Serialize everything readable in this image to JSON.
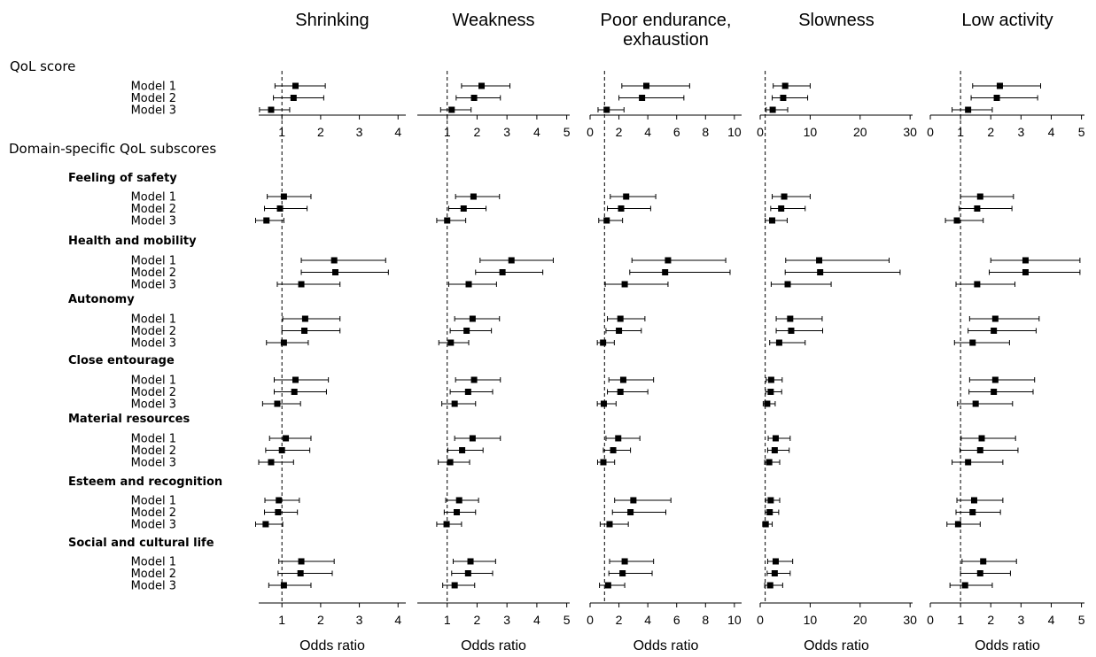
{
  "chart_data": {
    "type": "forest",
    "xlabel": "Odds ratio",
    "reference_line": 1,
    "sections": [
      {
        "label": "QoL score",
        "rows": [
          {
            "label": "",
            "models": [
              "Model 1",
              "Model 2",
              "Model 3"
            ]
          }
        ]
      },
      {
        "label": "Domain-specific QoL subscores",
        "rows": [
          {
            "label": "Feeling of safety",
            "models": [
              "Model 1",
              "Model 2",
              "Model 3"
            ]
          },
          {
            "label": "Health and mobility",
            "models": [
              "Model 1",
              "Model 2",
              "Model 3"
            ]
          },
          {
            "label": "Autonomy",
            "models": [
              "Model 1",
              "Model 2",
              "Model 3"
            ]
          },
          {
            "label": "Close entourage",
            "models": [
              "Model 1",
              "Model 2",
              "Model 3"
            ]
          },
          {
            "label": "Material resources",
            "models": [
              "Model 1",
              "Model 2",
              "Model 3"
            ]
          },
          {
            "label": "Esteem and recognition",
            "models": [
              "Model 1",
              "Model 2",
              "Model 3"
            ]
          },
          {
            "label": "Social and cultural life",
            "models": [
              "Model 1",
              "Model 2",
              "Model 3"
            ]
          }
        ]
      }
    ],
    "panels": [
      {
        "title": [
          "Shrinking"
        ],
        "xlim": [
          0.4,
          4.2
        ],
        "ticks": [
          "1",
          "2",
          "3",
          "4"
        ],
        "tick_values": [
          1,
          2,
          3,
          4
        ],
        "estimates": [
          [
            [
              1.35,
              0.82,
              2.12
            ],
            [
              1.3,
              0.78,
              2.08
            ],
            [
              0.72,
              0.42,
              1.2
            ]
          ],
          [
            [
              1.05,
              0.62,
              1.75
            ],
            [
              0.95,
              0.55,
              1.65
            ],
            [
              0.6,
              0.32,
              1.05
            ]
          ],
          [
            [
              2.35,
              1.5,
              3.68
            ],
            [
              2.38,
              1.5,
              3.75
            ],
            [
              1.5,
              0.88,
              2.5
            ]
          ],
          [
            [
              1.6,
              1.02,
              2.5
            ],
            [
              1.58,
              1.0,
              2.5
            ],
            [
              1.05,
              0.6,
              1.68
            ]
          ],
          [
            [
              1.35,
              0.8,
              2.2
            ],
            [
              1.32,
              0.8,
              2.15
            ],
            [
              0.88,
              0.5,
              1.48
            ]
          ],
          [
            [
              1.1,
              0.68,
              1.75
            ],
            [
              1.0,
              0.58,
              1.72
            ],
            [
              0.72,
              0.4,
              1.3
            ]
          ],
          [
            [
              0.92,
              0.56,
              1.45
            ],
            [
              0.9,
              0.55,
              1.4
            ],
            [
              0.58,
              0.32,
              1.02
            ]
          ],
          [
            [
              1.5,
              0.92,
              2.35
            ],
            [
              1.48,
              0.9,
              2.3
            ],
            [
              1.05,
              0.66,
              1.75
            ]
          ]
        ]
      },
      {
        "title": [
          "Weakness"
        ],
        "xlim": [
          0.0,
          5.1
        ],
        "ticks": [
          "1",
          "2",
          "3",
          "4",
          "5"
        ],
        "tick_values": [
          1,
          2,
          3,
          4,
          5
        ],
        "estimates": [
          [
            [
              2.15,
              1.48,
              3.1
            ],
            [
              1.9,
              1.3,
              2.78
            ],
            [
              1.15,
              0.78,
              1.8
            ]
          ],
          [
            [
              1.88,
              1.28,
              2.75
            ],
            [
              1.55,
              1.05,
              2.3
            ],
            [
              1.0,
              0.65,
              1.62
            ]
          ],
          [
            [
              3.15,
              2.1,
              4.55
            ],
            [
              2.85,
              1.95,
              4.2
            ],
            [
              1.72,
              1.05,
              2.65
            ]
          ],
          [
            [
              1.85,
              1.25,
              2.75
            ],
            [
              1.65,
              1.1,
              2.48
            ],
            [
              1.12,
              0.72,
              1.72
            ]
          ],
          [
            [
              1.9,
              1.28,
              2.78
            ],
            [
              1.7,
              1.1,
              2.52
            ],
            [
              1.25,
              0.82,
              1.95
            ]
          ],
          [
            [
              1.85,
              1.25,
              2.78
            ],
            [
              1.5,
              1.02,
              2.2
            ],
            [
              1.1,
              0.7,
              1.75
            ]
          ],
          [
            [
              1.4,
              0.95,
              2.05
            ],
            [
              1.32,
              0.9,
              1.95
            ],
            [
              0.98,
              0.65,
              1.48
            ]
          ],
          [
            [
              1.78,
              1.2,
              2.62
            ],
            [
              1.7,
              1.15,
              2.52
            ],
            [
              1.25,
              0.85,
              1.92
            ]
          ]
        ]
      },
      {
        "title": [
          "Poor endurance,",
          "exhaustion"
        ],
        "xlim": [
          0.0,
          10.5
        ],
        "ticks": [
          "0",
          "2",
          "4",
          "6",
          "8",
          "10"
        ],
        "tick_values": [
          0,
          2,
          4,
          6,
          8,
          10
        ],
        "estimates": [
          [
            [
              3.9,
              2.2,
              6.9
            ],
            [
              3.6,
              2.0,
              6.5
            ],
            [
              1.15,
              0.55,
              2.35
            ]
          ],
          [
            [
              2.5,
              1.4,
              4.55
            ],
            [
              2.15,
              1.2,
              4.2
            ],
            [
              1.15,
              0.6,
              2.25
            ]
          ],
          [
            [
              5.4,
              2.9,
              9.4
            ],
            [
              5.2,
              2.75,
              9.7
            ],
            [
              2.4,
              1.05,
              5.4
            ]
          ],
          [
            [
              2.1,
              1.2,
              3.8
            ],
            [
              2.0,
              1.1,
              3.55
            ],
            [
              0.9,
              0.5,
              1.68
            ]
          ],
          [
            [
              2.3,
              1.3,
              4.4
            ],
            [
              2.1,
              1.2,
              4.0
            ],
            [
              0.95,
              0.5,
              1.8
            ]
          ],
          [
            [
              1.95,
              1.1,
              3.45
            ],
            [
              1.6,
              0.92,
              2.8
            ],
            [
              0.92,
              0.52,
              1.7
            ]
          ],
          [
            [
              3.0,
              1.7,
              5.6
            ],
            [
              2.8,
              1.55,
              5.25
            ],
            [
              1.35,
              0.7,
              2.65
            ]
          ],
          [
            [
              2.4,
              1.35,
              4.4
            ],
            [
              2.25,
              1.3,
              4.3
            ],
            [
              1.25,
              0.65,
              2.4
            ]
          ]
        ]
      },
      {
        "title": [
          "Slowness"
        ],
        "xlim": [
          0.0,
          30.5
        ],
        "ticks": [
          "0",
          "10",
          "20",
          "30"
        ],
        "tick_values": [
          0,
          10,
          20,
          30
        ],
        "estimates": [
          [
            [
              5.0,
              2.6,
              10.0
            ],
            [
              4.6,
              2.4,
              9.5
            ],
            [
              2.5,
              1.2,
              5.5
            ]
          ],
          [
            [
              4.8,
              2.4,
              10.0
            ],
            [
              4.2,
              2.1,
              9.0
            ],
            [
              2.4,
              1.0,
              5.4
            ]
          ],
          [
            [
              11.8,
              5.1,
              25.8
            ],
            [
              12.0,
              5.0,
              28.0
            ],
            [
              5.5,
              2.2,
              14.2
            ]
          ],
          [
            [
              6.0,
              3.2,
              12.4
            ],
            [
              6.2,
              3.2,
              12.5
            ],
            [
              3.8,
              1.9,
              9.0
            ]
          ],
          [
            [
              2.2,
              1.2,
              4.4
            ],
            [
              2.1,
              1.1,
              4.3
            ],
            [
              1.4,
              0.6,
              3.0
            ]
          ],
          [
            [
              3.1,
              1.6,
              6.0
            ],
            [
              2.9,
              1.5,
              5.8
            ],
            [
              1.8,
              0.9,
              3.9
            ]
          ],
          [
            [
              2.1,
              1.1,
              3.9
            ],
            [
              1.9,
              1.0,
              3.7
            ],
            [
              1.1,
              0.5,
              2.4
            ]
          ],
          [
            [
              3.1,
              1.5,
              6.5
            ],
            [
              2.9,
              1.4,
              6.0
            ],
            [
              2.0,
              0.9,
              4.5
            ]
          ]
        ]
      },
      {
        "title": [
          "Low activity"
        ],
        "xlim": [
          0.0,
          5.1
        ],
        "ticks": [
          "0",
          "1",
          "2",
          "3",
          "4",
          "5"
        ],
        "tick_values": [
          0,
          1,
          2,
          3,
          4,
          5
        ],
        "estimates": [
          [
            [
              2.3,
              1.4,
              3.65
            ],
            [
              2.2,
              1.35,
              3.55
            ],
            [
              1.25,
              0.72,
              2.05
            ]
          ],
          [
            [
              1.65,
              1.0,
              2.75
            ],
            [
              1.55,
              0.95,
              2.7
            ],
            [
              0.88,
              0.5,
              1.75
            ]
          ],
          [
            [
              3.15,
              2.0,
              4.95
            ],
            [
              3.15,
              1.95,
              4.95
            ],
            [
              1.55,
              0.85,
              2.8
            ]
          ],
          [
            [
              2.15,
              1.3,
              3.6
            ],
            [
              2.1,
              1.25,
              3.5
            ],
            [
              1.4,
              0.8,
              2.62
            ]
          ],
          [
            [
              2.15,
              1.3,
              3.45
            ],
            [
              2.1,
              1.28,
              3.4
            ],
            [
              1.5,
              0.9,
              2.72
            ]
          ],
          [
            [
              1.7,
              1.02,
              2.82
            ],
            [
              1.65,
              0.98,
              2.9
            ],
            [
              1.25,
              0.72,
              2.4
            ]
          ],
          [
            [
              1.45,
              0.88,
              2.4
            ],
            [
              1.4,
              0.85,
              2.32
            ],
            [
              0.92,
              0.55,
              1.65
            ]
          ],
          [
            [
              1.75,
              1.05,
              2.85
            ],
            [
              1.65,
              1.0,
              2.65
            ],
            [
              1.15,
              0.65,
              2.05
            ]
          ]
        ]
      }
    ]
  }
}
